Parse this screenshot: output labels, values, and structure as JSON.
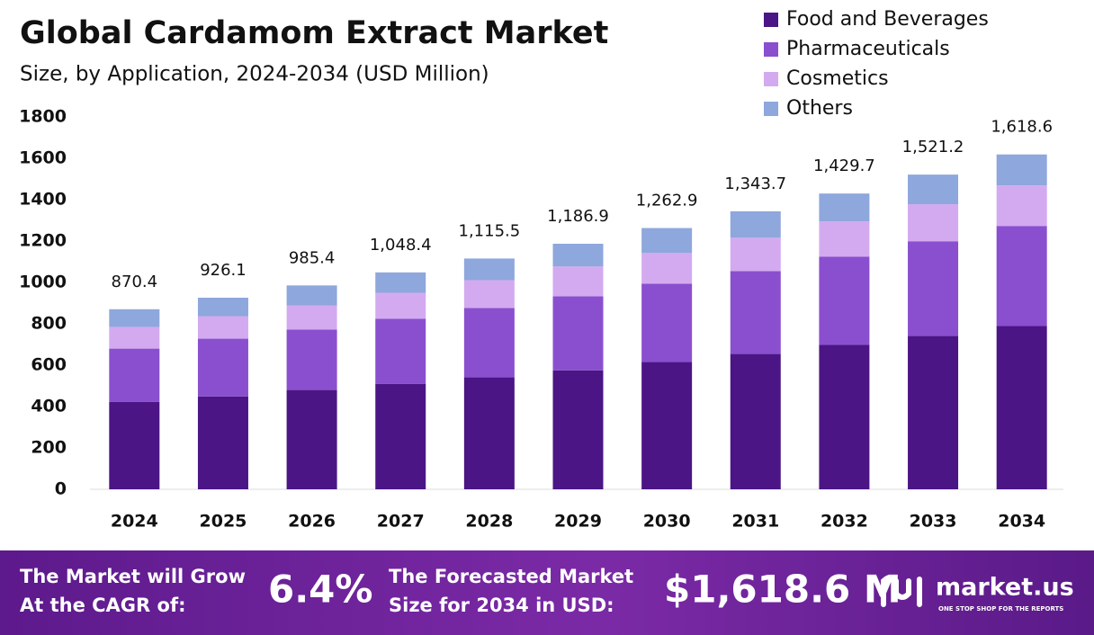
{
  "chart_data": {
    "type": "stacked_bar",
    "title": "Global Cardamom Extract Market",
    "subtitle": "Size, by Application, 2024-2034 (USD Million)",
    "categories": [
      "2024",
      "2025",
      "2026",
      "2027",
      "2028",
      "2029",
      "2030",
      "2031",
      "2032",
      "2033",
      "2034"
    ],
    "series": [
      {
        "name": "Food and Beverages",
        "color": "#4b1585",
        "values": [
          423,
          449,
          480,
          510,
          541,
          575,
          615,
          654,
          698,
          741,
          789
        ]
      },
      {
        "name": "Pharmaceuticals",
        "color": "#8a4fcf",
        "values": [
          257,
          279,
          292,
          314,
          335,
          358,
          379,
          401,
          427,
          458,
          484
        ]
      },
      {
        "name": "Cosmetics",
        "color": "#d3aaf0",
        "values": [
          105,
          109,
          117,
          126,
          135,
          144,
          148,
          161,
          170,
          179,
          196
        ]
      },
      {
        "name": "Others",
        "color": "#8ea7dc",
        "values": [
          85.4,
          89.1,
          96.4,
          98.4,
          104.5,
          109.9,
          120.9,
          127.7,
          134.7,
          143.2,
          149.6
        ]
      }
    ],
    "totals": [
      870.4,
      926.1,
      985.4,
      1048.4,
      1115.5,
      1186.9,
      1262.9,
      1343.7,
      1429.7,
      1521.2,
      1618.6
    ],
    "total_labels": [
      "870.4",
      "926.1",
      "985.4",
      "1,048.4",
      "1,115.5",
      "1,186.9",
      "1,262.9",
      "1,343.7",
      "1,429.7",
      "1,521.2",
      "1,618.6"
    ],
    "ylim": [
      0,
      1800
    ],
    "yticks": [
      0,
      200,
      400,
      600,
      800,
      1000,
      1200,
      1400,
      1600,
      1800
    ],
    "grid": false,
    "legend": "top-right"
  },
  "footer": {
    "cagr_label": [
      "The Market will Grow",
      "At the CAGR of:"
    ],
    "cagr_value": "6.4%",
    "forecast_label": [
      "The Forecasted Market",
      "Size for 2034 in USD:"
    ],
    "forecast_value": "$1,618.6 M",
    "brand": "market.us",
    "tagline": "ONE STOP SHOP FOR THE REPORTS"
  }
}
